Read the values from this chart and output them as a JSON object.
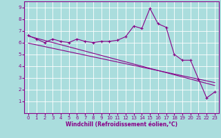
{
  "xlabel": "Windchill (Refroidissement éolien,°C)",
  "bg_color": "#aadddd",
  "line_color": "#880088",
  "grid_color": "#bbeeee",
  "xlim": [
    -0.5,
    23.5
  ],
  "ylim": [
    0,
    9.5
  ],
  "xticks": [
    0,
    1,
    2,
    3,
    4,
    5,
    6,
    7,
    8,
    9,
    10,
    11,
    12,
    13,
    14,
    15,
    16,
    17,
    18,
    19,
    20,
    21,
    22,
    23
  ],
  "yticks": [
    1,
    2,
    3,
    4,
    5,
    6,
    7,
    8,
    9
  ],
  "main_x": [
    0,
    1,
    2,
    3,
    4,
    5,
    6,
    7,
    8,
    9,
    10,
    11,
    12,
    13,
    14,
    15,
    16,
    17,
    18,
    19,
    20,
    21,
    22,
    23
  ],
  "main_y": [
    6.6,
    6.3,
    6.0,
    6.3,
    6.1,
    6.0,
    6.3,
    6.1,
    6.0,
    6.1,
    6.1,
    6.2,
    6.5,
    7.4,
    7.2,
    8.9,
    7.6,
    7.3,
    5.0,
    4.5,
    4.5,
    2.9,
    1.3,
    1.8
  ],
  "line1_x": [
    0,
    23
  ],
  "line1_y": [
    6.55,
    2.35
  ],
  "line2_x": [
    0,
    23
  ],
  "line2_y": [
    5.95,
    2.6
  ]
}
